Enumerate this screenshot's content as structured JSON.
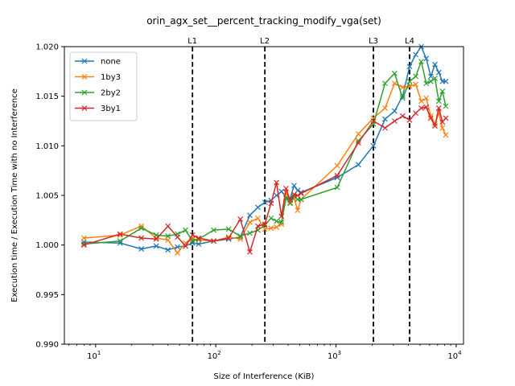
{
  "chart_data": {
    "type": "line",
    "title": "orin_agx_set__percent_tracking_modify_vga(set)",
    "xlabel": "Size of Interference (KiB)",
    "ylabel": "Execution time / Execution Time with no Interference",
    "xscale": "log",
    "xlim": [
      5.5,
      11500
    ],
    "ylim": [
      0.99,
      1.02
    ],
    "yticks": [
      "0.990",
      "0.995",
      "1.000",
      "1.005",
      "1.010",
      "1.015",
      "1.020"
    ],
    "xticks": [
      {
        "value": 10,
        "base": "10",
        "exp": "1"
      },
      {
        "value": 100,
        "base": "10",
        "exp": "2"
      },
      {
        "value": 1000,
        "base": "10",
        "exp": "3"
      },
      {
        "value": 10000,
        "base": "10",
        "exp": "4"
      }
    ],
    "grid": false,
    "legend": "top-left",
    "vlines": [
      {
        "label": "L1",
        "x": 64
      },
      {
        "label": "L2",
        "x": 256
      },
      {
        "label": "L3",
        "x": 2048
      },
      {
        "label": "L4",
        "x": 4096
      }
    ],
    "series": [
      {
        "name": "none",
        "color": "#1f77b4",
        "x": [
          8,
          16,
          24,
          32,
          40,
          48,
          56,
          64,
          72,
          96,
          128,
          160,
          192,
          224,
          256,
          288,
          320,
          352,
          384,
          416,
          448,
          480,
          512,
          1024,
          1536,
          2048,
          2560,
          3072,
          3584,
          4096,
          4608,
          5120,
          5632,
          6144,
          6656,
          7168,
          7680,
          8192
        ],
        "y": [
          1.0003,
          1.0002,
          0.9996,
          0.9999,
          0.9995,
          0.9998,
          0.9999,
          1.0002,
          1.0001,
          1.0004,
          1.0006,
          1.0008,
          1.003,
          1.0038,
          1.0043,
          1.0045,
          1.005,
          1.0054,
          1.0048,
          1.0047,
          1.006,
          1.0055,
          1.0053,
          1.0068,
          1.0081,
          1.01,
          1.0127,
          1.0135,
          1.015,
          1.018,
          1.0192,
          1.02,
          1.0188,
          1.017,
          1.0182,
          1.0174,
          1.0165,
          1.0165
        ]
      },
      {
        "name": "1by3",
        "color": "#ff7f0e",
        "x": [
          8,
          16,
          24,
          32,
          40,
          48,
          56,
          64,
          72,
          96,
          128,
          160,
          192,
          224,
          256,
          288,
          320,
          352,
          384,
          416,
          448,
          480,
          512,
          1024,
          1536,
          2048,
          2560,
          3072,
          3584,
          4096,
          4608,
          5120,
          5632,
          6144,
          6656,
          7168,
          7680,
          8192
        ],
        "y": [
          1.0007,
          1.001,
          1.0019,
          1.0007,
          1.0005,
          0.9992,
          1.0002,
          1.0006,
          1.0005,
          1.0004,
          1.0008,
          1.0006,
          1.0023,
          1.0027,
          1.0016,
          1.0017,
          1.0018,
          1.0021,
          1.0053,
          1.0043,
          1.0047,
          1.0035,
          1.0046,
          1.008,
          1.0112,
          1.0128,
          1.0138,
          1.0163,
          1.0159,
          1.016,
          1.0162,
          1.0145,
          1.0148,
          1.013,
          1.0122,
          1.0133,
          1.0118,
          1.0111
        ]
      },
      {
        "name": "2by2",
        "color": "#2ca02c",
        "x": [
          8,
          16,
          24,
          32,
          40,
          48,
          56,
          64,
          72,
          96,
          128,
          160,
          192,
          224,
          256,
          288,
          320,
          352,
          384,
          416,
          448,
          480,
          512,
          1024,
          1536,
          2048,
          2560,
          3072,
          3584,
          4096,
          4608,
          5120,
          5632,
          6144,
          6656,
          7168,
          7680,
          8192
        ],
        "y": [
          1.0001,
          1.0004,
          1.0017,
          1.001,
          1.0009,
          1.0011,
          1.0015,
          1.0004,
          1.0006,
          1.0015,
          1.0016,
          1.0009,
          1.0012,
          1.0015,
          1.002,
          1.0027,
          1.0024,
          1.0023,
          1.0047,
          1.0042,
          1.0049,
          1.0046,
          1.0046,
          1.0058,
          1.0105,
          1.0122,
          1.0163,
          1.0173,
          1.0148,
          1.0165,
          1.017,
          1.0185,
          1.0163,
          1.0165,
          1.0168,
          1.0145,
          1.0155,
          1.014
        ]
      },
      {
        "name": "3by1",
        "color": "#d62728",
        "x": [
          8,
          16,
          24,
          32,
          40,
          48,
          56,
          64,
          72,
          96,
          128,
          160,
          192,
          224,
          256,
          288,
          320,
          352,
          384,
          416,
          448,
          480,
          512,
          1024,
          1536,
          2048,
          2560,
          3072,
          3584,
          4096,
          4608,
          5120,
          5632,
          6144,
          6656,
          7168,
          7680,
          8192
        ],
        "y": [
          1.0,
          1.0011,
          1.0007,
          1.0006,
          1.0019,
          1.0008,
          0.9999,
          1.001,
          1.0007,
          1.0004,
          1.0007,
          1.0026,
          0.9993,
          1.0019,
          1.0021,
          1.0042,
          1.0063,
          1.0029,
          1.0057,
          1.0045,
          1.0051,
          1.005,
          1.0052,
          1.007,
          1.0103,
          1.0125,
          1.0118,
          1.0125,
          1.013,
          1.0126,
          1.0133,
          1.0138,
          1.0139,
          1.0128,
          1.012,
          1.0138,
          1.0124,
          1.0128
        ]
      }
    ]
  }
}
